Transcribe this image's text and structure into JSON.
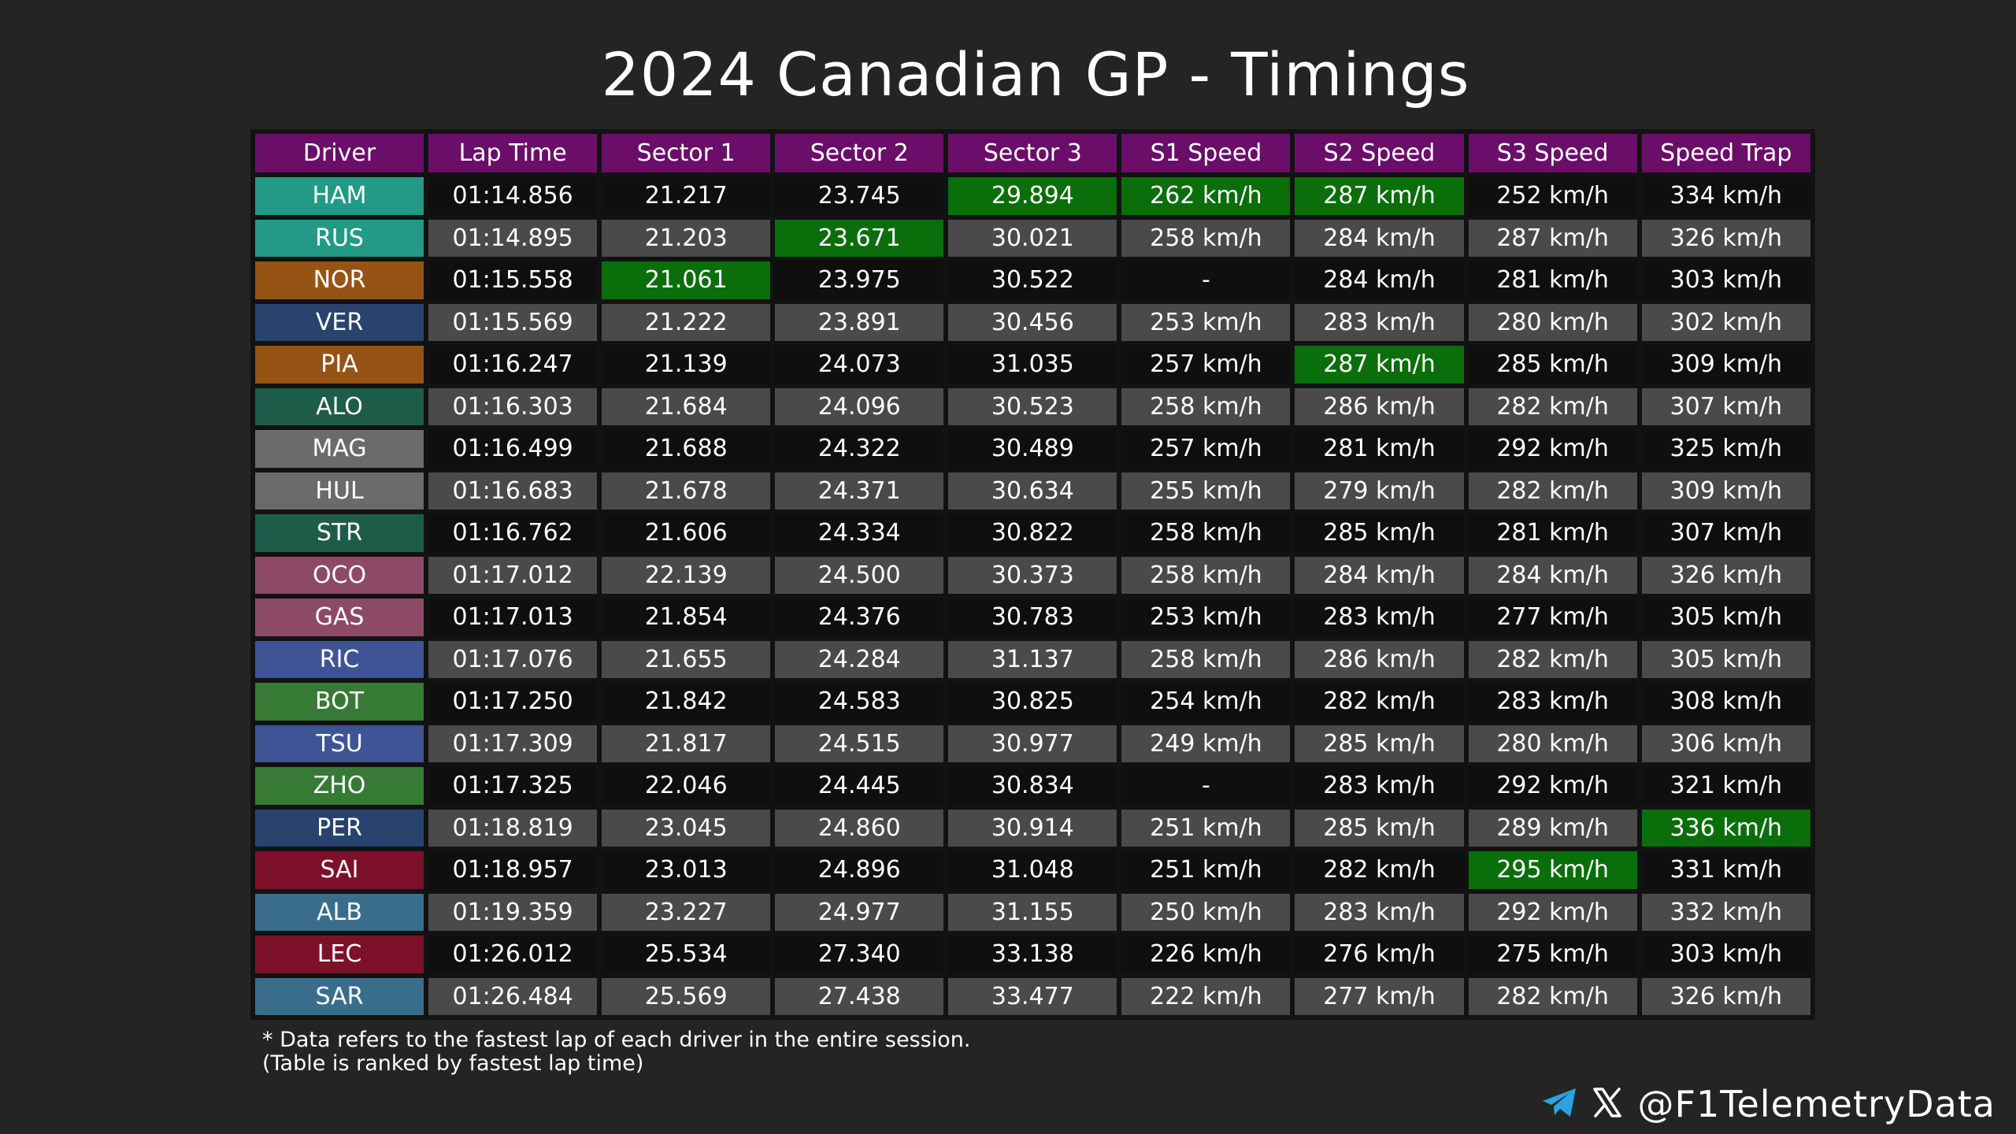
{
  "title": "2024 Canadian GP - Timings",
  "watermark": "@F1TelemetryData",
  "columns": [
    "Driver",
    "Lap Time",
    "Sector 1",
    "Sector 2",
    "Sector 3",
    "S1 Speed",
    "S2 Speed",
    "S3 Speed",
    "Speed Trap"
  ],
  "best_color": "#0a6e0a",
  "rows": [
    {
      "driver": "HAM",
      "color": "#229a85",
      "lap": "01:14.856",
      "s1": "21.217",
      "s2": "23.745",
      "s3": "29.894",
      "s1_speed": "262 km/h",
      "s2_speed": "287 km/h",
      "s3_speed": "252 km/h",
      "trap": "334 km/h",
      "best": [
        "s3",
        "s1_speed",
        "s2_speed"
      ]
    },
    {
      "driver": "RUS",
      "color": "#229a85",
      "lap": "01:14.895",
      "s1": "21.203",
      "s2": "23.671",
      "s3": "30.021",
      "s1_speed": "258 km/h",
      "s2_speed": "284 km/h",
      "s3_speed": "287 km/h",
      "trap": "326 km/h",
      "best": [
        "s2"
      ]
    },
    {
      "driver": "NOR",
      "color": "#965314",
      "lap": "01:15.558",
      "s1": "21.061",
      "s2": "23.975",
      "s3": "30.522",
      "s1_speed": "-",
      "s2_speed": "284 km/h",
      "s3_speed": "281 km/h",
      "trap": "303 km/h",
      "best": [
        "s1"
      ]
    },
    {
      "driver": "VER",
      "color": "#28436e",
      "lap": "01:15.569",
      "s1": "21.222",
      "s2": "23.891",
      "s3": "30.456",
      "s1_speed": "253 km/h",
      "s2_speed": "283 km/h",
      "s3_speed": "280 km/h",
      "trap": "302 km/h",
      "best": []
    },
    {
      "driver": "PIA",
      "color": "#965314",
      "lap": "01:16.247",
      "s1": "21.139",
      "s2": "24.073",
      "s3": "31.035",
      "s1_speed": "257 km/h",
      "s2_speed": "287 km/h",
      "s3_speed": "285 km/h",
      "trap": "309 km/h",
      "best": [
        "s2_speed"
      ]
    },
    {
      "driver": "ALO",
      "color": "#1e5c4a",
      "lap": "01:16.303",
      "s1": "21.684",
      "s2": "24.096",
      "s3": "30.523",
      "s1_speed": "258 km/h",
      "s2_speed": "286 km/h",
      "s3_speed": "282 km/h",
      "trap": "307 km/h",
      "best": []
    },
    {
      "driver": "MAG",
      "color": "#6b6b6b",
      "lap": "01:16.499",
      "s1": "21.688",
      "s2": "24.322",
      "s3": "30.489",
      "s1_speed": "257 km/h",
      "s2_speed": "281 km/h",
      "s3_speed": "292 km/h",
      "trap": "325 km/h",
      "best": []
    },
    {
      "driver": "HUL",
      "color": "#6b6b6b",
      "lap": "01:16.683",
      "s1": "21.678",
      "s2": "24.371",
      "s3": "30.634",
      "s1_speed": "255 km/h",
      "s2_speed": "279 km/h",
      "s3_speed": "282 km/h",
      "trap": "309 km/h",
      "best": []
    },
    {
      "driver": "STR",
      "color": "#1e5c4a",
      "lap": "01:16.762",
      "s1": "21.606",
      "s2": "24.334",
      "s3": "30.822",
      "s1_speed": "258 km/h",
      "s2_speed": "285 km/h",
      "s3_speed": "281 km/h",
      "trap": "307 km/h",
      "best": []
    },
    {
      "driver": "OCO",
      "color": "#8c4a66",
      "lap": "01:17.012",
      "s1": "22.139",
      "s2": "24.500",
      "s3": "30.373",
      "s1_speed": "258 km/h",
      "s2_speed": "284 km/h",
      "s3_speed": "284 km/h",
      "trap": "326 km/h",
      "best": []
    },
    {
      "driver": "GAS",
      "color": "#8c4a66",
      "lap": "01:17.013",
      "s1": "21.854",
      "s2": "24.376",
      "s3": "30.783",
      "s1_speed": "253 km/h",
      "s2_speed": "283 km/h",
      "s3_speed": "277 km/h",
      "trap": "305 km/h",
      "best": []
    },
    {
      "driver": "RIC",
      "color": "#3f5494",
      "lap": "01:17.076",
      "s1": "21.655",
      "s2": "24.284",
      "s3": "31.137",
      "s1_speed": "258 km/h",
      "s2_speed": "286 km/h",
      "s3_speed": "282 km/h",
      "trap": "305 km/h",
      "best": []
    },
    {
      "driver": "BOT",
      "color": "#377a36",
      "lap": "01:17.250",
      "s1": "21.842",
      "s2": "24.583",
      "s3": "30.825",
      "s1_speed": "254 km/h",
      "s2_speed": "282 km/h",
      "s3_speed": "283 km/h",
      "trap": "308 km/h",
      "best": []
    },
    {
      "driver": "TSU",
      "color": "#3f5494",
      "lap": "01:17.309",
      "s1": "21.817",
      "s2": "24.515",
      "s3": "30.977",
      "s1_speed": "249 km/h",
      "s2_speed": "285 km/h",
      "s3_speed": "280 km/h",
      "trap": "306 km/h",
      "best": []
    },
    {
      "driver": "ZHO",
      "color": "#377a36",
      "lap": "01:17.325",
      "s1": "22.046",
      "s2": "24.445",
      "s3": "30.834",
      "s1_speed": "-",
      "s2_speed": "283 km/h",
      "s3_speed": "292 km/h",
      "trap": "321 km/h",
      "best": []
    },
    {
      "driver": "PER",
      "color": "#28436e",
      "lap": "01:18.819",
      "s1": "23.045",
      "s2": "24.860",
      "s3": "30.914",
      "s1_speed": "251 km/h",
      "s2_speed": "285 km/h",
      "s3_speed": "289 km/h",
      "trap": "336 km/h",
      "best": [
        "trap"
      ]
    },
    {
      "driver": "SAI",
      "color": "#7d1129",
      "lap": "01:18.957",
      "s1": "23.013",
      "s2": "24.896",
      "s3": "31.048",
      "s1_speed": "251 km/h",
      "s2_speed": "282 km/h",
      "s3_speed": "295 km/h",
      "trap": "331 km/h",
      "best": [
        "s3_speed"
      ]
    },
    {
      "driver": "ALB",
      "color": "#3a6d8c",
      "lap": "01:19.359",
      "s1": "23.227",
      "s2": "24.977",
      "s3": "31.155",
      "s1_speed": "250 km/h",
      "s2_speed": "283 km/h",
      "s3_speed": "292 km/h",
      "trap": "332 km/h",
      "best": []
    },
    {
      "driver": "LEC",
      "color": "#7d1129",
      "lap": "01:26.012",
      "s1": "25.534",
      "s2": "27.340",
      "s3": "33.138",
      "s1_speed": "226 km/h",
      "s2_speed": "276 km/h",
      "s3_speed": "275 km/h",
      "trap": "303 km/h",
      "best": []
    },
    {
      "driver": "SAR",
      "color": "#3a6d8c",
      "lap": "01:26.484",
      "s1": "25.569",
      "s2": "27.438",
      "s3": "33.477",
      "s1_speed": "222 km/h",
      "s2_speed": "277 km/h",
      "s3_speed": "282 km/h",
      "trap": "326 km/h",
      "best": []
    }
  ],
  "footnote": {
    "line1": "* Data refers to the fastest lap of each driver in the entire session.",
    "line2": "(Table is ranked by fastest lap time)"
  },
  "social": {
    "handle": "@F1TelemetryData",
    "icons": [
      "telegram-icon",
      "x-icon"
    ]
  }
}
